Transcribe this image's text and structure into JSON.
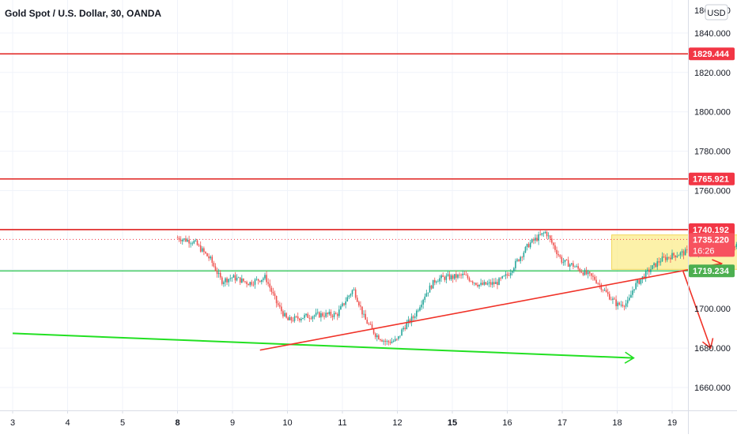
{
  "header": {
    "symbol_title": "Gold Spot / U.S. Dollar, 30, OANDA",
    "currency_button": "USD"
  },
  "colors": {
    "background": "#ffffff",
    "grid": "#f0f3fa",
    "axis_border": "#d9dde6",
    "resistance_line": "#e0201e",
    "support_line": "#1fbf4a",
    "trend_green": "#22e022",
    "trend_red": "#f03228",
    "consolidation_box": "#fbec8c",
    "candle_up": "#26a69a",
    "candle_down": "#ef5350",
    "price_label_red": "#f23645",
    "price_label_green": "#4caf50",
    "axis_text": "#131722"
  },
  "chart_data": {
    "type": "candlestick",
    "title": "Gold Spot / U.S. Dollar, 30, OANDA",
    "ylim": [
      1650,
      1860
    ],
    "y_ticks": [
      "1660.000",
      "1680.000",
      "1700.000",
      "1720.000",
      "1740.000",
      "1760.000",
      "1780.000",
      "1800.000",
      "1820.000",
      "1840.000"
    ],
    "y_tick_values": [
      1660,
      1680,
      1700,
      1720,
      1740,
      1760,
      1780,
      1800,
      1820,
      1840
    ],
    "x_ticks": [
      "3",
      "4",
      "5",
      "8",
      "9",
      "10",
      "11",
      "12",
      "15",
      "16",
      "17",
      "18",
      "19"
    ],
    "x_tick_bold": [
      false,
      false,
      false,
      true,
      false,
      false,
      false,
      false,
      true,
      false,
      false,
      false,
      false
    ],
    "horizontal_levels": [
      {
        "value": 1829.444,
        "label": "1829.444",
        "style": "resistance"
      },
      {
        "value": 1765.921,
        "label": "1765.921",
        "style": "resistance"
      },
      {
        "value": 1740.192,
        "label": "1740.192",
        "style": "resistance"
      },
      {
        "value": 1719.234,
        "label": "1719.234",
        "style": "support"
      }
    ],
    "last_price": {
      "value": 1735.22,
      "label": "1735.220",
      "countdown": "16:26"
    },
    "price_path": [
      [
        3.0,
        1736
      ],
      [
        3.3,
        1734
      ],
      [
        3.6,
        1725
      ],
      [
        3.8,
        1714
      ],
      [
        4.0,
        1716
      ],
      [
        4.3,
        1713
      ],
      [
        4.6,
        1716
      ],
      [
        4.8,
        1703
      ],
      [
        5.0,
        1694
      ],
      [
        5.3,
        1696
      ],
      [
        5.6,
        1697
      ],
      [
        5.9,
        1697
      ],
      [
        6.1,
        1706
      ],
      [
        6.2,
        1710
      ],
      [
        6.3,
        1703
      ],
      [
        6.4,
        1695
      ],
      [
        6.6,
        1687
      ],
      [
        6.8,
        1683
      ],
      [
        7.0,
        1684
      ],
      [
        7.1,
        1690
      ],
      [
        7.3,
        1696
      ],
      [
        7.5,
        1707
      ],
      [
        7.7,
        1715
      ],
      [
        7.9,
        1716
      ],
      [
        8.0,
        1716
      ],
      [
        8.2,
        1717
      ],
      [
        8.5,
        1712
      ],
      [
        8.8,
        1713
      ],
      [
        9.0,
        1717
      ],
      [
        9.2,
        1725
      ],
      [
        9.4,
        1733
      ],
      [
        9.6,
        1737
      ],
      [
        9.7,
        1739
      ],
      [
        9.8,
        1734
      ],
      [
        10.0,
        1724
      ],
      [
        10.2,
        1722
      ],
      [
        10.3,
        1720
      ],
      [
        10.6,
        1715
      ],
      [
        10.8,
        1708
      ],
      [
        11.0,
        1702
      ],
      [
        11.2,
        1703
      ],
      [
        11.3,
        1711
      ],
      [
        11.6,
        1720
      ],
      [
        11.8,
        1725
      ],
      [
        12.0,
        1727
      ],
      [
        12.3,
        1729
      ],
      [
        12.6,
        1728
      ],
      [
        12.9,
        1731
      ],
      [
        13.1,
        1733
      ],
      [
        13.4,
        1730
      ],
      [
        13.7,
        1733
      ],
      [
        14.0,
        1734
      ],
      [
        14.2,
        1733
      ],
      [
        14.4,
        1735
      ]
    ],
    "annotations": {
      "green_trendline": {
        "from": [
          2.0,
          1687.5
        ],
        "to": [
          13.3,
          1675
        ]
      },
      "red_trendline": {
        "from": [
          6.5,
          1679
        ],
        "to": [
          14.9,
          1723
        ]
      },
      "red_arrow_down": {
        "from": [
          14.2,
          1719
        ],
        "to": [
          14.7,
          1680
        ]
      },
      "consolidation_box": {
        "x1": 10.9,
        "x2": 13.3,
        "y1": 1737.5,
        "y2": 1720
      }
    }
  }
}
